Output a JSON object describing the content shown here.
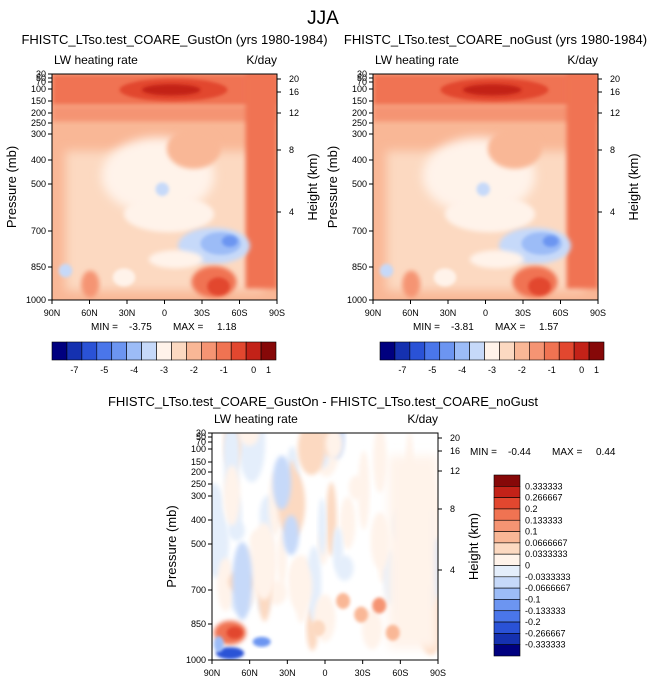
{
  "figure": {
    "title": "JJA"
  },
  "colors": {
    "bar_top": [
      "#00007f",
      "#1531b0",
      "#2a52d6",
      "#4a76ea",
      "#6c95f1",
      "#9cbcf7",
      "#c6d9f9",
      "#fff3ea",
      "#fcd9c1",
      "#f9b796",
      "#f59473",
      "#f07352",
      "#e2472f",
      "#c32218",
      "#860808"
    ],
    "bar_diff": [
      "#00007f",
      "#1531b0",
      "#2a52d6",
      "#4a76ea",
      "#6c95f1",
      "#9cbcf7",
      "#c6d9f9",
      "#e4eefb",
      "#fff3ea",
      "#fcd9c1",
      "#f9b796",
      "#f59473",
      "#f07352",
      "#e2472f",
      "#c32218",
      "#860808"
    ]
  },
  "chart_data": [
    {
      "type": "heatmap",
      "title": "FHISTC_LTso.test_COARE_GustOn (yrs 1980-1984)",
      "left_label": "LW heating rate",
      "right_label": "K/day",
      "ylabel": "Pressure (mb)",
      "ylabel_right": "Height (km)",
      "x_ticks": [
        "90N",
        "60N",
        "30N",
        "0",
        "30S",
        "60S",
        "90S"
      ],
      "y_ticks": [
        "30",
        "50",
        "70",
        "100",
        "150",
        "200",
        "250",
        "300",
        "400",
        "500",
        "700",
        "850",
        "1000"
      ],
      "height_ticks": [
        "20",
        "16",
        "12",
        "8",
        "4"
      ],
      "stats": {
        "min_label": "MIN =",
        "min": "-3.75",
        "max_label": "MAX =",
        "max": "1.18"
      },
      "colorbar_labels": [
        "-7",
        "-5",
        "-4",
        "-3",
        "-2",
        "-1",
        "0",
        "1"
      ]
    },
    {
      "type": "heatmap",
      "title": "FHISTC_LTso.test_COARE_noGust (yrs 1980-1984)",
      "left_label": "LW heating rate",
      "right_label": "K/day",
      "ylabel": "Pressure (mb)",
      "ylabel_right": "Height (km)",
      "x_ticks": [
        "90N",
        "60N",
        "30N",
        "0",
        "30S",
        "60S",
        "90S"
      ],
      "y_ticks": [
        "30",
        "50",
        "70",
        "100",
        "150",
        "200",
        "250",
        "300",
        "400",
        "500",
        "700",
        "850",
        "1000"
      ],
      "height_ticks": [
        "20",
        "16",
        "12",
        "8",
        "4"
      ],
      "stats": {
        "min_label": "MIN =",
        "min": "-3.81",
        "max_label": "MAX =",
        "max": "1.57"
      },
      "colorbar_labels": [
        "-7",
        "-5",
        "-4",
        "-3",
        "-2",
        "-1",
        "0",
        "1"
      ]
    },
    {
      "type": "heatmap",
      "title": "FHISTC_LTso.test_COARE_GustOn - FHISTC_LTso.test_COARE_noGust",
      "left_label": "LW heating rate",
      "right_label": "K/day",
      "ylabel": "Pressure (mb)",
      "ylabel_right": "Height (km)",
      "x_ticks": [
        "90N",
        "60N",
        "30N",
        "0",
        "30S",
        "60S",
        "90S"
      ],
      "y_ticks": [
        "30",
        "50",
        "70",
        "100",
        "150",
        "200",
        "250",
        "300",
        "400",
        "500",
        "700",
        "850",
        "1000"
      ],
      "height_ticks": [
        "20",
        "16",
        "12",
        "8",
        "4"
      ],
      "stats": {
        "min_label": "MIN =",
        "min": "-0.44",
        "max_label": "MAX =",
        "max": "0.44"
      },
      "colorbar_labels": [
        "0.333333",
        "0.266667",
        "0.2",
        "0.133333",
        "0.1",
        "0.0666667",
        "0.0333333",
        "0",
        "-0.0333333",
        "-0.0666667",
        "-0.1",
        "-0.133333",
        "-0.2",
        "-0.266667",
        "-0.333333"
      ]
    }
  ]
}
